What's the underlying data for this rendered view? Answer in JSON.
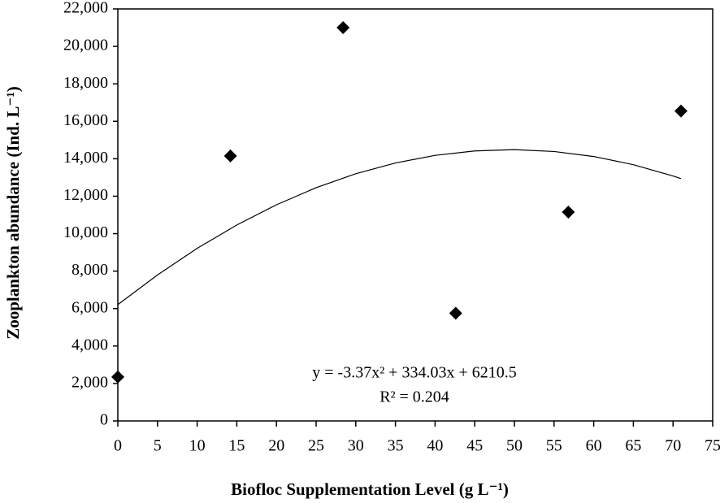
{
  "chart_data": {
    "type": "scatter",
    "x_label": "Biofloc Supplementation Level (g L⁻¹)",
    "y_label": "Zooplankton  abundance (Ind. L⁻¹)",
    "x": [
      0,
      14.2,
      28.4,
      42.6,
      56.8,
      71
    ],
    "values": [
      2350,
      14150,
      21000,
      5750,
      11150,
      16550
    ],
    "color": "#000000",
    "trend": {
      "x": [
        0,
        5,
        10,
        15,
        20,
        25,
        30,
        35,
        40,
        45,
        50,
        55,
        60,
        65,
        70,
        71
      ],
      "values": [
        6211,
        7796,
        9214,
        10463,
        11543,
        12455,
        13198,
        13773,
        14180,
        14418,
        14487,
        14388,
        14120,
        13684,
        13080,
        12939
      ]
    },
    "annotations": [
      "y = -3.37x² + 334.03x + 6210.5",
      "R² = 0.204"
    ],
    "xlim": [
      0,
      75
    ],
    "xticks": [
      0,
      5,
      10,
      15,
      20,
      25,
      30,
      35,
      40,
      45,
      50,
      55,
      60,
      65,
      70,
      75
    ],
    "ylim": [
      0,
      22000
    ],
    "yticks": [
      0,
      {
        "value": 2000,
        "label": "2,000"
      },
      {
        "value": 4000,
        "label": "4,000"
      },
      {
        "value": 6000,
        "label": "6,000"
      },
      {
        "value": 8000,
        "label": "8,000"
      },
      {
        "value": 10000,
        "label": "10,000"
      },
      {
        "value": 12000,
        "label": "12,000"
      },
      {
        "value": 14000,
        "label": "14,000"
      },
      {
        "value": 16000,
        "label": "16,000"
      },
      {
        "value": 18000,
        "label": "18,000"
      },
      {
        "value": 20000,
        "label": "20,000"
      },
      {
        "value": 22000,
        "label": "22,000"
      }
    ],
    "grid": false
  }
}
